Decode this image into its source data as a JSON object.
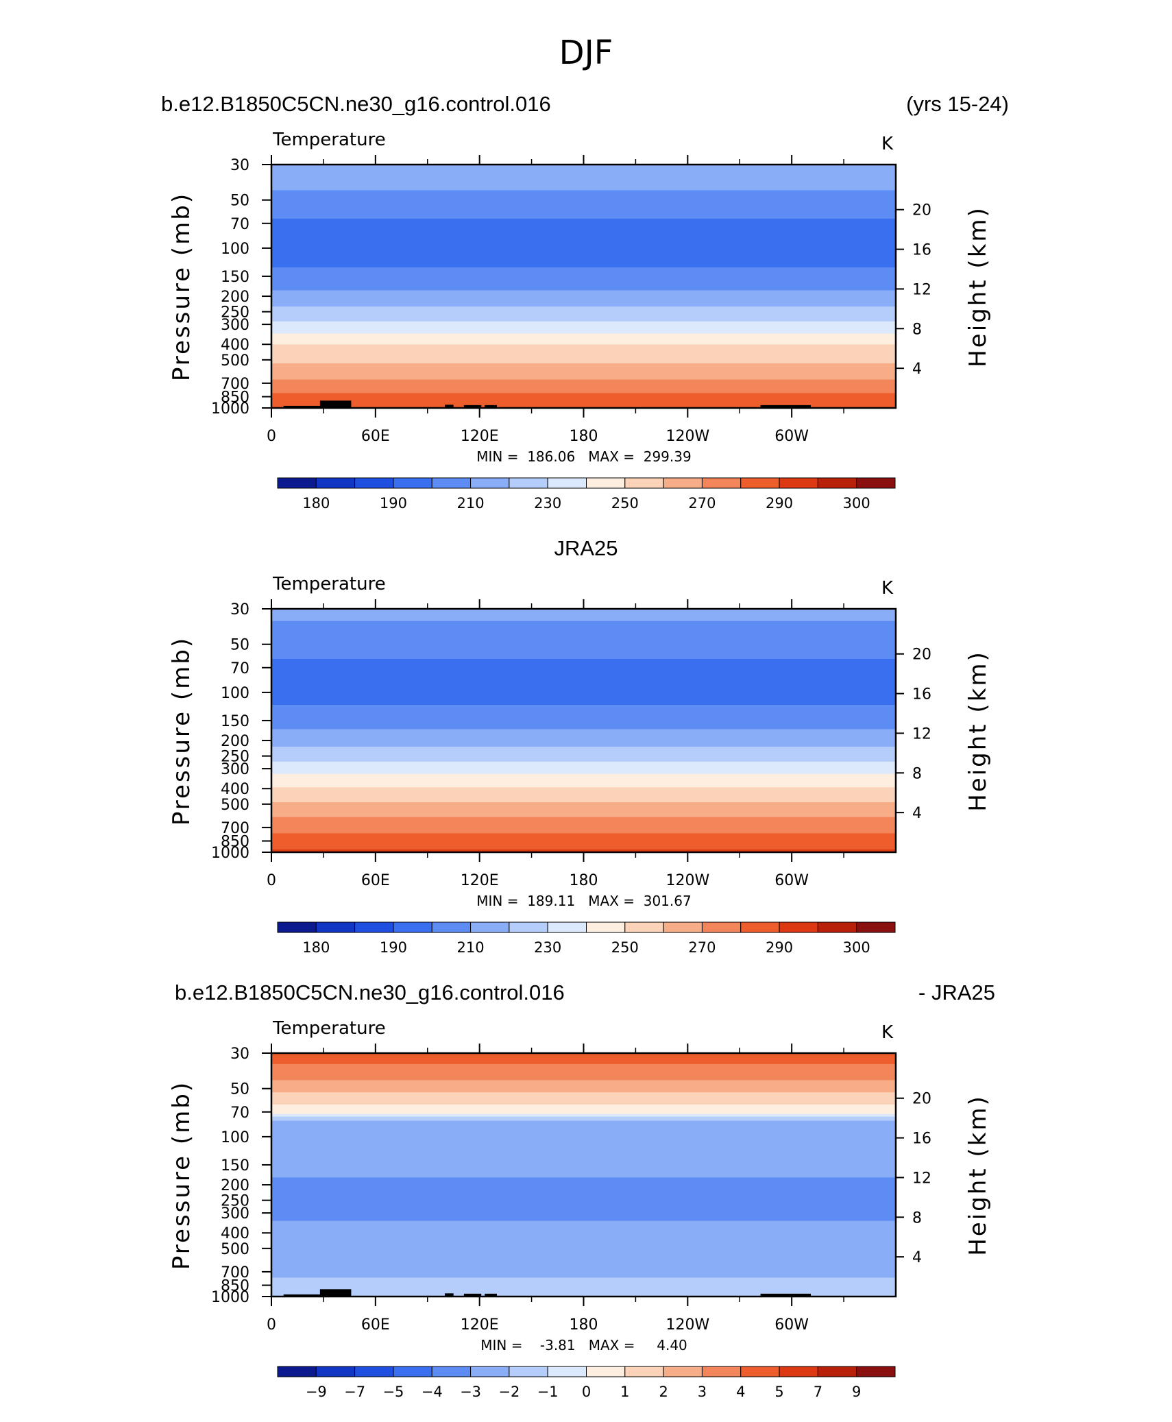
{
  "page_title": "DJF",
  "panels": [
    {
      "left_title": "b.e12.B1850C5CN.ne30_g16.control.016",
      "right_title": "(yrs 15-24)",
      "center_title": "",
      "variable": "Temperature",
      "units": "K",
      "min_max_text": "MIN =  186.06   MAX =  299.39"
    },
    {
      "left_title": "",
      "right_title": "",
      "center_title": "JRA25",
      "variable": "Temperature",
      "units": "K",
      "min_max_text": "MIN =  189.11   MAX =  301.67"
    },
    {
      "left_title": "b.e12.B1850C5CN.ne30_g16.control.016",
      "right_title": "- JRA25",
      "center_title": "",
      "variable": "Temperature",
      "units": "K",
      "min_max_text": "MIN =    -3.81   MAX =     4.40"
    }
  ],
  "chart_data": [
    {
      "type": "heatmap",
      "title": "b.e12.B1850C5CN.ne30_g16.control.016 (yrs 15-24)",
      "subtitle": "Temperature",
      "units": "K",
      "xlabel": "",
      "ylabel": "Pressure (mb)",
      "y2label": "Height (km)",
      "x_ticks": [
        "0",
        "60E",
        "120E",
        "180",
        "120W",
        "60W"
      ],
      "x_tick_values": [
        0,
        60,
        120,
        180,
        240,
        300
      ],
      "xlim": [
        0,
        360
      ],
      "y_ticks": [
        "30",
        "50",
        "70",
        "100",
        "150",
        "200",
        "250",
        "300",
        "400",
        "500",
        "700",
        "850",
        "1000"
      ],
      "y_tick_values": [
        30,
        50,
        70,
        100,
        150,
        200,
        250,
        300,
        400,
        500,
        700,
        850,
        1000
      ],
      "ylim": [
        1000,
        30
      ],
      "y2_ticks": [
        "20",
        "16",
        "12",
        "8",
        "4"
      ],
      "y2_tick_values": [
        20,
        16,
        12,
        8,
        4
      ],
      "colorbar_labels": [
        "180",
        "190",
        "210",
        "230",
        "250",
        "270",
        "290",
        "300"
      ],
      "min": 186.06,
      "max": 299.39,
      "profile": [
        {
          "p": 30,
          "value": 215
        },
        {
          "p": 40,
          "value": 212
        },
        {
          "p": 50,
          "value": 206
        },
        {
          "p": 70,
          "value": 198
        },
        {
          "p": 100,
          "value": 194
        },
        {
          "p": 150,
          "value": 203
        },
        {
          "p": 200,
          "value": 214
        },
        {
          "p": 250,
          "value": 224
        },
        {
          "p": 300,
          "value": 233
        },
        {
          "p": 400,
          "value": 250
        },
        {
          "p": 500,
          "value": 258
        },
        {
          "p": 600,
          "value": 266
        },
        {
          "p": 700,
          "value": 273
        },
        {
          "p": 850,
          "value": 283
        },
        {
          "p": 1000,
          "value": 290
        }
      ]
    },
    {
      "type": "heatmap",
      "title": "JRA25",
      "subtitle": "Temperature",
      "units": "K",
      "xlabel": "",
      "ylabel": "Pressure (mb)",
      "y2label": "Height (km)",
      "x_ticks": [
        "0",
        "60E",
        "120E",
        "180",
        "120W",
        "60W"
      ],
      "x_tick_values": [
        0,
        60,
        120,
        180,
        240,
        300
      ],
      "xlim": [
        0,
        360
      ],
      "y_ticks": [
        "30",
        "50",
        "70",
        "100",
        "150",
        "200",
        "250",
        "300",
        "400",
        "500",
        "700",
        "850",
        "1000"
      ],
      "y_tick_values": [
        30,
        50,
        70,
        100,
        150,
        200,
        250,
        300,
        400,
        500,
        700,
        850,
        1000
      ],
      "ylim": [
        1000,
        30
      ],
      "y2_ticks": [
        "20",
        "16",
        "12",
        "8",
        "4"
      ],
      "y2_tick_values": [
        20,
        16,
        12,
        8,
        4
      ],
      "colorbar_labels": [
        "180",
        "190",
        "210",
        "230",
        "250",
        "270",
        "290",
        "300"
      ],
      "min": 189.11,
      "max": 301.67,
      "profile": [
        {
          "p": 30,
          "value": 214
        },
        {
          "p": 40,
          "value": 207
        },
        {
          "p": 50,
          "value": 203
        },
        {
          "p": 70,
          "value": 198
        },
        {
          "p": 100,
          "value": 196
        },
        {
          "p": 150,
          "value": 206
        },
        {
          "p": 200,
          "value": 216
        },
        {
          "p": 250,
          "value": 226
        },
        {
          "p": 300,
          "value": 236
        },
        {
          "p": 400,
          "value": 252
        },
        {
          "p": 500,
          "value": 262
        },
        {
          "p": 600,
          "value": 270
        },
        {
          "p": 700,
          "value": 276
        },
        {
          "p": 850,
          "value": 286
        },
        {
          "p": 1000,
          "value": 292
        }
      ]
    },
    {
      "type": "heatmap",
      "title": "b.e12.B1850C5CN.ne30_g16.control.016 - JRA25",
      "subtitle": "Temperature",
      "units": "K",
      "xlabel": "",
      "ylabel": "Pressure (mb)",
      "y2label": "Height (km)",
      "x_ticks": [
        "0",
        "60E",
        "120E",
        "180",
        "120W",
        "60W"
      ],
      "x_tick_values": [
        0,
        60,
        120,
        180,
        240,
        300
      ],
      "xlim": [
        0,
        360
      ],
      "y_ticks": [
        "30",
        "50",
        "70",
        "100",
        "150",
        "200",
        "250",
        "300",
        "400",
        "500",
        "700",
        "850",
        "1000"
      ],
      "y_tick_values": [
        30,
        50,
        70,
        100,
        150,
        200,
        250,
        300,
        400,
        500,
        700,
        850,
        1000
      ],
      "ylim": [
        1000,
        30
      ],
      "y2_ticks": [
        "20",
        "16",
        "12",
        "8",
        "4"
      ],
      "y2_tick_values": [
        20,
        16,
        12,
        8,
        4
      ],
      "colorbar_labels": [
        "−9",
        "−7",
        "−5",
        "−4",
        "−3",
        "−2",
        "−1",
        "0",
        "1",
        "2",
        "3",
        "4",
        "5",
        "7",
        "9"
      ],
      "min": -3.81,
      "max": 4.4,
      "profile": [
        {
          "p": 30,
          "value": 4.5
        },
        {
          "p": 40,
          "value": 3.5
        },
        {
          "p": 50,
          "value": 2.2
        },
        {
          "p": 60,
          "value": 1.2
        },
        {
          "p": 70,
          "value": 0.3
        },
        {
          "p": 80,
          "value": -2.5
        },
        {
          "p": 100,
          "value": -2.5
        },
        {
          "p": 150,
          "value": -2.6
        },
        {
          "p": 200,
          "value": -3.3
        },
        {
          "p": 300,
          "value": -3.3
        },
        {
          "p": 400,
          "value": -2.5
        },
        {
          "p": 500,
          "value": -2.4
        },
        {
          "p": 700,
          "value": -2.3
        },
        {
          "p": 850,
          "value": -1.5
        },
        {
          "p": 1000,
          "value": -1.5
        }
      ]
    }
  ],
  "colors": {
    "palette": [
      "#0b1b8f",
      "#1236c4",
      "#1f4fe0",
      "#3a6fef",
      "#5d8cf5",
      "#8aadf7",
      "#b5cdfa",
      "#dce9fc",
      "#fdeedf",
      "#fbd3b8",
      "#f7ae88",
      "#f28559",
      "#ed5e2c",
      "#dc3812",
      "#b8200a",
      "#8a0f0f"
    ],
    "temp_levels": [
      180,
      185,
      190,
      200,
      210,
      220,
      230,
      240,
      250,
      260,
      270,
      280,
      290,
      295,
      300
    ],
    "diff_levels": [
      -9,
      -7,
      -5,
      -4,
      -3,
      -2,
      -1,
      0,
      1,
      2,
      3,
      4,
      5,
      7,
      9
    ],
    "topography": "#000000"
  }
}
